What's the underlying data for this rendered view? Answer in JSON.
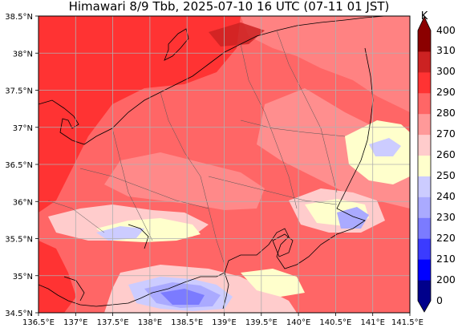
{
  "title": "Himawari 8/9 Tbb, 2025-07-10 16 UTC (07-11 01 JST)",
  "map": {
    "lon_range": [
      136.5,
      141.5
    ],
    "lat_range": [
      34.5,
      38.5
    ],
    "grid": true,
    "lon_ticks": [
      "136.5°E",
      "137°E",
      "137.5°E",
      "138°E",
      "138.5°E",
      "139°E",
      "139.5°E",
      "140°E",
      "140.5°E",
      "141°E",
      "141.5°E"
    ],
    "lat_ticks": [
      "38.5°N",
      "38°N",
      "37.5°N",
      "37°N",
      "36.5°N",
      "36°N",
      "35.5°N",
      "35°N",
      "34.5°N"
    ]
  },
  "colorbar": {
    "unit": "K",
    "ticks": [
      "400",
      "310",
      "300",
      "290",
      "280",
      "270",
      "260",
      "250",
      "240",
      "230",
      "220",
      "210",
      "200",
      "0"
    ],
    "colors": [
      "#00008b",
      "#0000ff",
      "#3b3bff",
      "#7b7bff",
      "#aaaaff",
      "#ccccff",
      "#ffffcc",
      "#ffcccc",
      "#ff9999",
      "#ff6666",
      "#ff3333",
      "#cc2222",
      "#8b0000"
    ]
  }
}
